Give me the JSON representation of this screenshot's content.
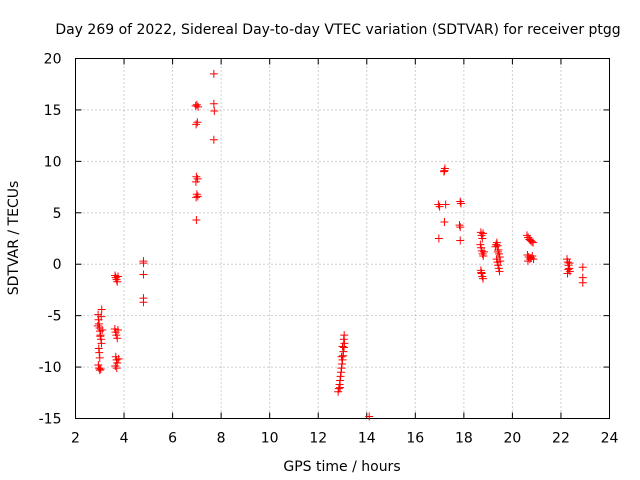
{
  "chart_data": {
    "type": "scatter",
    "title": "Day 269 of 2022, Sidereal Day-to-day VTEC variation (SDTVAR) for receiver ptgg",
    "xlabel": "GPS time / hours",
    "ylabel": "SDTVAR / TECUs",
    "xlim": [
      2,
      24
    ],
    "ylim": [
      -15,
      20
    ],
    "xticks": [
      2,
      4,
      6,
      8,
      10,
      12,
      14,
      16,
      18,
      20,
      22,
      24
    ],
    "yticks": [
      -15,
      -10,
      -5,
      0,
      5,
      10,
      15,
      20
    ],
    "grid": true,
    "marker": "+",
    "color": "#ff0000",
    "series": [
      {
        "name": "SDTVAR",
        "points": [
          [
            2.93,
            -4.9
          ],
          [
            2.95,
            -5.4
          ],
          [
            2.97,
            -5.8
          ],
          [
            2.99,
            -6.2
          ],
          [
            3.01,
            -6.5
          ],
          [
            3.03,
            -6.9
          ],
          [
            3.05,
            -7.3
          ],
          [
            3.07,
            -7.7
          ],
          [
            2.96,
            -8.2
          ],
          [
            2.98,
            -8.6
          ],
          [
            3.0,
            -9.1
          ],
          [
            2.94,
            -9.8
          ],
          [
            2.97,
            -10.1
          ],
          [
            3.0,
            -10.3
          ],
          [
            3.04,
            -10.2
          ],
          [
            3.08,
            -4.4
          ],
          [
            3.06,
            -5.1
          ],
          [
            2.92,
            -6.0
          ],
          [
            3.1,
            -6.4
          ],
          [
            3.02,
            -7.0
          ],
          [
            3.62,
            -6.3
          ],
          [
            3.65,
            -6.6
          ],
          [
            3.68,
            -6.9
          ],
          [
            3.72,
            -7.2
          ],
          [
            3.75,
            -6.4
          ],
          [
            3.66,
            -9.0
          ],
          [
            3.69,
            -9.3
          ],
          [
            3.72,
            -9.6
          ],
          [
            3.64,
            -9.9
          ],
          [
            3.7,
            -10.1
          ],
          [
            3.78,
            -9.2
          ],
          [
            3.63,
            -1.1
          ],
          [
            3.66,
            -1.3
          ],
          [
            3.69,
            -1.5
          ],
          [
            3.72,
            -1.7
          ],
          [
            3.75,
            -1.2
          ],
          [
            4.8,
            0.3
          ],
          [
            4.8,
            0.1
          ],
          [
            4.8,
            -1.0
          ],
          [
            4.8,
            -3.3
          ],
          [
            4.8,
            -3.7
          ],
          [
            6.95,
            15.4
          ],
          [
            7.0,
            15.5
          ],
          [
            7.05,
            15.3
          ],
          [
            6.97,
            13.6
          ],
          [
            7.02,
            13.8
          ],
          [
            6.98,
            8.5
          ],
          [
            7.03,
            8.3
          ],
          [
            6.96,
            8.0
          ],
          [
            7.0,
            6.8
          ],
          [
            7.04,
            6.6
          ],
          [
            6.97,
            6.5
          ],
          [
            6.98,
            4.3
          ],
          [
            7.7,
            18.5
          ],
          [
            7.7,
            15.6
          ],
          [
            7.72,
            14.9
          ],
          [
            7.7,
            12.1
          ],
          [
            12.82,
            -12.4
          ],
          [
            12.85,
            -12.1
          ],
          [
            12.88,
            -11.7
          ],
          [
            12.9,
            -11.3
          ],
          [
            12.92,
            -10.9
          ],
          [
            12.94,
            -10.5
          ],
          [
            12.96,
            -10.1
          ],
          [
            12.98,
            -9.7
          ],
          [
            13.0,
            -9.3
          ],
          [
            13.02,
            -8.9
          ],
          [
            13.04,
            -8.5
          ],
          [
            13.06,
            -8.1
          ],
          [
            13.08,
            -7.7
          ],
          [
            13.05,
            -7.3
          ],
          [
            13.07,
            -6.9
          ],
          [
            13.0,
            -8.0
          ],
          [
            12.96,
            -9.0
          ],
          [
            12.9,
            -12.0
          ],
          [
            14.1,
            -14.8
          ],
          [
            16.95,
            5.8
          ],
          [
            17.0,
            5.6
          ],
          [
            16.97,
            2.5
          ],
          [
            17.2,
            9.1
          ],
          [
            17.22,
            9.3
          ],
          [
            17.18,
            9.0
          ],
          [
            17.25,
            5.8
          ],
          [
            17.2,
            4.1
          ],
          [
            17.85,
            6.1
          ],
          [
            17.88,
            5.9
          ],
          [
            17.82,
            3.8
          ],
          [
            17.85,
            3.6
          ],
          [
            17.85,
            2.3
          ],
          [
            18.7,
            3.1
          ],
          [
            18.73,
            2.8
          ],
          [
            18.76,
            2.5
          ],
          [
            18.79,
            3.0
          ],
          [
            18.68,
            1.9
          ],
          [
            18.71,
            1.6
          ],
          [
            18.74,
            1.3
          ],
          [
            18.77,
            1.0
          ],
          [
            18.8,
            0.8
          ],
          [
            18.83,
            1.2
          ],
          [
            18.7,
            -0.6
          ],
          [
            18.73,
            -0.9
          ],
          [
            18.76,
            -1.2
          ],
          [
            18.79,
            -1.4
          ],
          [
            18.72,
            -0.8
          ],
          [
            19.3,
            1.7
          ],
          [
            19.33,
            1.9
          ],
          [
            19.36,
            2.1
          ],
          [
            19.39,
            1.8
          ],
          [
            19.42,
            1.4
          ],
          [
            19.45,
            1.0
          ],
          [
            19.48,
            0.7
          ],
          [
            19.35,
            0.5
          ],
          [
            19.38,
            0.2
          ],
          [
            19.41,
            -0.1
          ],
          [
            19.44,
            -0.4
          ],
          [
            19.47,
            -0.7
          ],
          [
            19.5,
            0.3
          ],
          [
            19.4,
            1.2
          ],
          [
            20.6,
            2.8
          ],
          [
            20.65,
            2.6
          ],
          [
            20.7,
            2.4
          ],
          [
            20.75,
            2.3
          ],
          [
            20.8,
            2.2
          ],
          [
            20.85,
            2.1
          ],
          [
            20.62,
            0.9
          ],
          [
            20.67,
            0.7
          ],
          [
            20.72,
            0.5
          ],
          [
            20.77,
            0.6
          ],
          [
            20.82,
            0.8
          ],
          [
            20.87,
            0.5
          ],
          [
            20.64,
            0.3
          ],
          [
            22.25,
            0.5
          ],
          [
            22.28,
            0.2
          ],
          [
            22.31,
            -0.1
          ],
          [
            22.34,
            -0.4
          ],
          [
            22.37,
            -0.7
          ],
          [
            22.27,
            -0.9
          ],
          [
            22.3,
            -0.5
          ],
          [
            22.35,
            0.1
          ],
          [
            22.9,
            -0.3
          ],
          [
            22.9,
            -1.3
          ],
          [
            22.9,
            -1.8
          ]
        ]
      }
    ]
  }
}
